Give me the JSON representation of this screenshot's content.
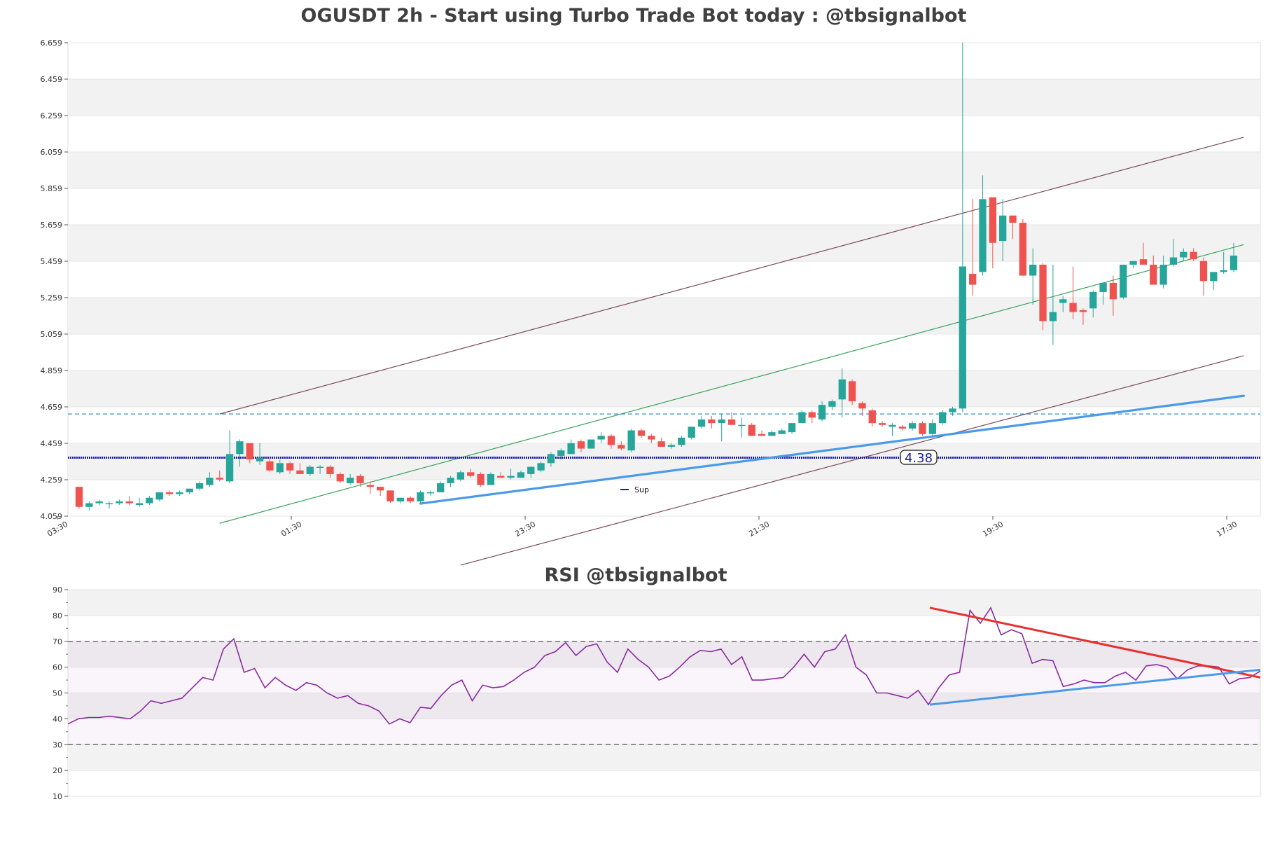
{
  "colors": {
    "up": "#26a69a",
    "down": "#ef5350",
    "band": "#f2f2f2",
    "channel": "#7a4a5a",
    "mid_channel": "#3aa35a",
    "trendline": "#4a9ae8",
    "resistance_dash": "#3a8ec8",
    "support_line": "#1a1ab0",
    "rsi_line": "#8a2aa0",
    "rsi_down_trend": "#e83030",
    "rsi_up_trend": "#4a9ae8"
  },
  "chart_data": [
    {
      "type": "candlestick",
      "title": "OGUSDT 2h - Start using Turbo Trade Bot today : @tbsignalbot",
      "ylim": [
        4.059,
        6.659
      ],
      "y_ticks": [
        "4.059",
        "4.259",
        "4.459",
        "4.659",
        "4.859",
        "5.059",
        "5.259",
        "5.459",
        "5.659",
        "5.859",
        "6.059",
        "6.259",
        "6.459",
        "6.659"
      ],
      "x_ticks": [
        "03:30",
        "01:30",
        "23:30",
        "21:30",
        "19:30",
        "17:30"
      ],
      "support_level": 4.38,
      "support_label": "4.38",
      "resistance_level": 4.62,
      "legend": [
        {
          "name": "Sup"
        }
      ],
      "candles": [
        [
          4.22,
          4.22,
          4.1,
          4.11
        ],
        [
          4.11,
          4.14,
          4.09,
          4.13
        ],
        [
          4.13,
          4.15,
          4.12,
          4.14
        ],
        [
          4.13,
          4.14,
          4.1,
          4.13
        ],
        [
          4.13,
          4.15,
          4.12,
          4.14
        ],
        [
          4.14,
          4.17,
          4.12,
          4.13
        ],
        [
          4.12,
          4.16,
          4.11,
          4.13
        ],
        [
          4.13,
          4.17,
          4.12,
          4.16
        ],
        [
          4.15,
          4.19,
          4.14,
          4.19
        ],
        [
          4.19,
          4.2,
          4.17,
          4.18
        ],
        [
          4.18,
          4.2,
          4.17,
          4.19
        ],
        [
          4.19,
          4.21,
          4.18,
          4.21
        ],
        [
          4.21,
          4.25,
          4.2,
          4.24
        ],
        [
          4.23,
          4.3,
          4.22,
          4.27
        ],
        [
          4.27,
          4.31,
          4.25,
          4.26
        ],
        [
          4.25,
          4.53,
          4.24,
          4.4
        ],
        [
          4.4,
          4.48,
          4.33,
          4.47
        ],
        [
          4.46,
          4.46,
          4.35,
          4.37
        ],
        [
          4.36,
          4.46,
          4.34,
          4.38
        ],
        [
          4.36,
          4.38,
          4.3,
          4.31
        ],
        [
          4.3,
          4.37,
          4.29,
          4.35
        ],
        [
          4.35,
          4.36,
          4.29,
          4.31
        ],
        [
          4.31,
          4.35,
          4.29,
          4.29
        ],
        [
          4.29,
          4.34,
          4.28,
          4.33
        ],
        [
          4.33,
          4.34,
          4.29,
          4.33
        ],
        [
          4.33,
          4.34,
          4.27,
          4.29
        ],
        [
          4.29,
          4.3,
          4.24,
          4.25
        ],
        [
          4.24,
          4.29,
          4.23,
          4.27
        ],
        [
          4.28,
          4.29,
          4.22,
          4.24
        ],
        [
          4.23,
          4.25,
          4.18,
          4.22
        ],
        [
          4.22,
          4.22,
          4.17,
          4.2
        ],
        [
          4.2,
          4.2,
          4.13,
          4.14
        ],
        [
          4.14,
          4.16,
          4.13,
          4.16
        ],
        [
          4.16,
          4.17,
          4.13,
          4.14
        ],
        [
          4.14,
          4.2,
          4.13,
          4.19
        ],
        [
          4.19,
          4.2,
          4.17,
          4.19
        ],
        [
          4.19,
          4.25,
          4.19,
          4.24
        ],
        [
          4.24,
          4.28,
          4.22,
          4.27
        ],
        [
          4.26,
          4.31,
          4.25,
          4.3
        ],
        [
          4.3,
          4.32,
          4.27,
          4.28
        ],
        [
          4.29,
          4.3,
          4.22,
          4.23
        ],
        [
          4.23,
          4.3,
          4.23,
          4.29
        ],
        [
          4.28,
          4.3,
          4.27,
          4.27
        ],
        [
          4.27,
          4.32,
          4.26,
          4.28
        ],
        [
          4.27,
          4.31,
          4.27,
          4.3
        ],
        [
          4.29,
          4.33,
          4.27,
          4.33
        ],
        [
          4.31,
          4.36,
          4.3,
          4.35
        ],
        [
          4.35,
          4.41,
          4.33,
          4.4
        ],
        [
          4.39,
          4.43,
          4.37,
          4.42
        ],
        [
          4.4,
          4.48,
          4.4,
          4.46
        ],
        [
          4.47,
          4.48,
          4.41,
          4.43
        ],
        [
          4.43,
          4.48,
          4.43,
          4.48
        ],
        [
          4.48,
          4.52,
          4.46,
          4.5
        ],
        [
          4.5,
          4.51,
          4.43,
          4.45
        ],
        [
          4.45,
          4.47,
          4.42,
          4.43
        ],
        [
          4.42,
          4.54,
          4.41,
          4.53
        ],
        [
          4.53,
          4.54,
          4.49,
          4.5
        ],
        [
          4.5,
          4.51,
          4.46,
          4.48
        ],
        [
          4.47,
          4.49,
          4.44,
          4.44
        ],
        [
          4.44,
          4.46,
          4.43,
          4.45
        ],
        [
          4.45,
          4.5,
          4.44,
          4.49
        ],
        [
          4.49,
          4.55,
          4.48,
          4.55
        ],
        [
          4.55,
          4.61,
          4.54,
          4.59
        ],
        [
          4.59,
          4.61,
          4.54,
          4.57
        ],
        [
          4.57,
          4.62,
          4.47,
          4.59
        ],
        [
          4.59,
          4.63,
          4.56,
          4.56
        ],
        [
          4.56,
          4.6,
          4.49,
          4.56
        ],
        [
          4.56,
          4.57,
          4.5,
          4.5
        ],
        [
          4.51,
          4.53,
          4.5,
          4.5
        ],
        [
          4.5,
          4.53,
          4.5,
          4.52
        ],
        [
          4.51,
          4.54,
          4.51,
          4.53
        ],
        [
          4.52,
          4.57,
          4.51,
          4.57
        ],
        [
          4.57,
          4.64,
          4.57,
          4.63
        ],
        [
          4.63,
          4.64,
          4.57,
          4.6
        ],
        [
          4.59,
          4.69,
          4.58,
          4.67
        ],
        [
          4.66,
          4.7,
          4.64,
          4.69
        ],
        [
          4.7,
          4.87,
          4.6,
          4.81
        ],
        [
          4.8,
          4.81,
          4.67,
          4.69
        ],
        [
          4.68,
          4.69,
          4.61,
          4.65
        ],
        [
          4.64,
          4.65,
          4.55,
          4.57
        ],
        [
          4.57,
          4.58,
          4.55,
          4.56
        ],
        [
          4.55,
          4.57,
          4.5,
          4.56
        ],
        [
          4.55,
          4.56,
          4.53,
          4.54
        ],
        [
          4.54,
          4.58,
          4.53,
          4.57
        ],
        [
          4.57,
          4.58,
          4.5,
          4.51
        ],
        [
          4.51,
          4.59,
          4.5,
          4.57
        ],
        [
          4.57,
          4.64,
          4.56,
          4.63
        ],
        [
          4.63,
          4.66,
          4.61,
          4.65
        ],
        [
          4.65,
          6.66,
          4.63,
          5.43
        ],
        [
          5.39,
          5.8,
          5.27,
          5.33
        ],
        [
          5.4,
          5.93,
          5.38,
          5.8
        ],
        [
          5.81,
          5.81,
          5.42,
          5.56
        ],
        [
          5.57,
          5.8,
          5.46,
          5.71
        ],
        [
          5.71,
          5.71,
          5.58,
          5.67
        ],
        [
          5.67,
          5.69,
          5.38,
          5.38
        ],
        [
          5.38,
          5.53,
          5.22,
          5.44
        ],
        [
          5.44,
          5.45,
          5.08,
          5.13
        ],
        [
          5.13,
          5.44,
          5.0,
          5.18
        ],
        [
          5.23,
          5.27,
          5.18,
          5.25
        ],
        [
          5.23,
          5.43,
          5.14,
          5.18
        ],
        [
          5.19,
          5.2,
          5.11,
          5.18
        ],
        [
          5.2,
          5.3,
          5.15,
          5.29
        ],
        [
          5.29,
          5.33,
          5.22,
          5.34
        ],
        [
          5.34,
          5.38,
          5.16,
          5.25
        ],
        [
          5.26,
          5.44,
          5.25,
          5.44
        ],
        [
          5.44,
          5.45,
          5.42,
          5.46
        ],
        [
          5.47,
          5.56,
          5.44,
          5.44
        ],
        [
          5.44,
          5.49,
          5.35,
          5.33
        ],
        [
          5.33,
          5.49,
          5.31,
          5.44
        ],
        [
          5.44,
          5.58,
          5.43,
          5.48
        ],
        [
          5.48,
          5.53,
          5.46,
          5.51
        ],
        [
          5.51,
          5.53,
          5.46,
          5.47
        ],
        [
          5.46,
          5.48,
          5.27,
          5.35
        ],
        [
          5.35,
          5.4,
          5.3,
          5.4
        ],
        [
          5.4,
          5.51,
          5.39,
          5.41
        ],
        [
          5.41,
          5.56,
          5.4,
          5.49
        ]
      ]
    },
    {
      "type": "line",
      "title": "RSI @tbsignalbot",
      "ylim": [
        10,
        90
      ],
      "y_ticks": [
        "10",
        "20",
        "30",
        "40",
        "50",
        "60",
        "70",
        "80",
        "90"
      ],
      "overbought": 70,
      "oversold": 30,
      "values": [
        38,
        40,
        40.5,
        40.5,
        41,
        40.5,
        40,
        43,
        47,
        46,
        47,
        48,
        52,
        56,
        55,
        67,
        71,
        58,
        59.5,
        52,
        56,
        53,
        51,
        54,
        53,
        50,
        48,
        49,
        46,
        45,
        43,
        38,
        40,
        38.5,
        44.5,
        44,
        49,
        53,
        55,
        47,
        53,
        52,
        52.5,
        55,
        58,
        60,
        64.5,
        66,
        69.5,
        64.5,
        68,
        69,
        62,
        58,
        67,
        63,
        60,
        55,
        56.5,
        60,
        64,
        66.5,
        66,
        67,
        61,
        64,
        55,
        55,
        55.5,
        56,
        60,
        65,
        60,
        66,
        67,
        72.5,
        60,
        57,
        50,
        50,
        49,
        48,
        51,
        45.5,
        52,
        57,
        58,
        82,
        77,
        83,
        72.5,
        74.5,
        73,
        61.5,
        63,
        62.5,
        52.5,
        53.5,
        55,
        54,
        54,
        56.5,
        58,
        55,
        60.5,
        61,
        60,
        55.5,
        59,
        60.5,
        60.5,
        60,
        53.5,
        55.5,
        56,
        58.5
      ]
    }
  ]
}
